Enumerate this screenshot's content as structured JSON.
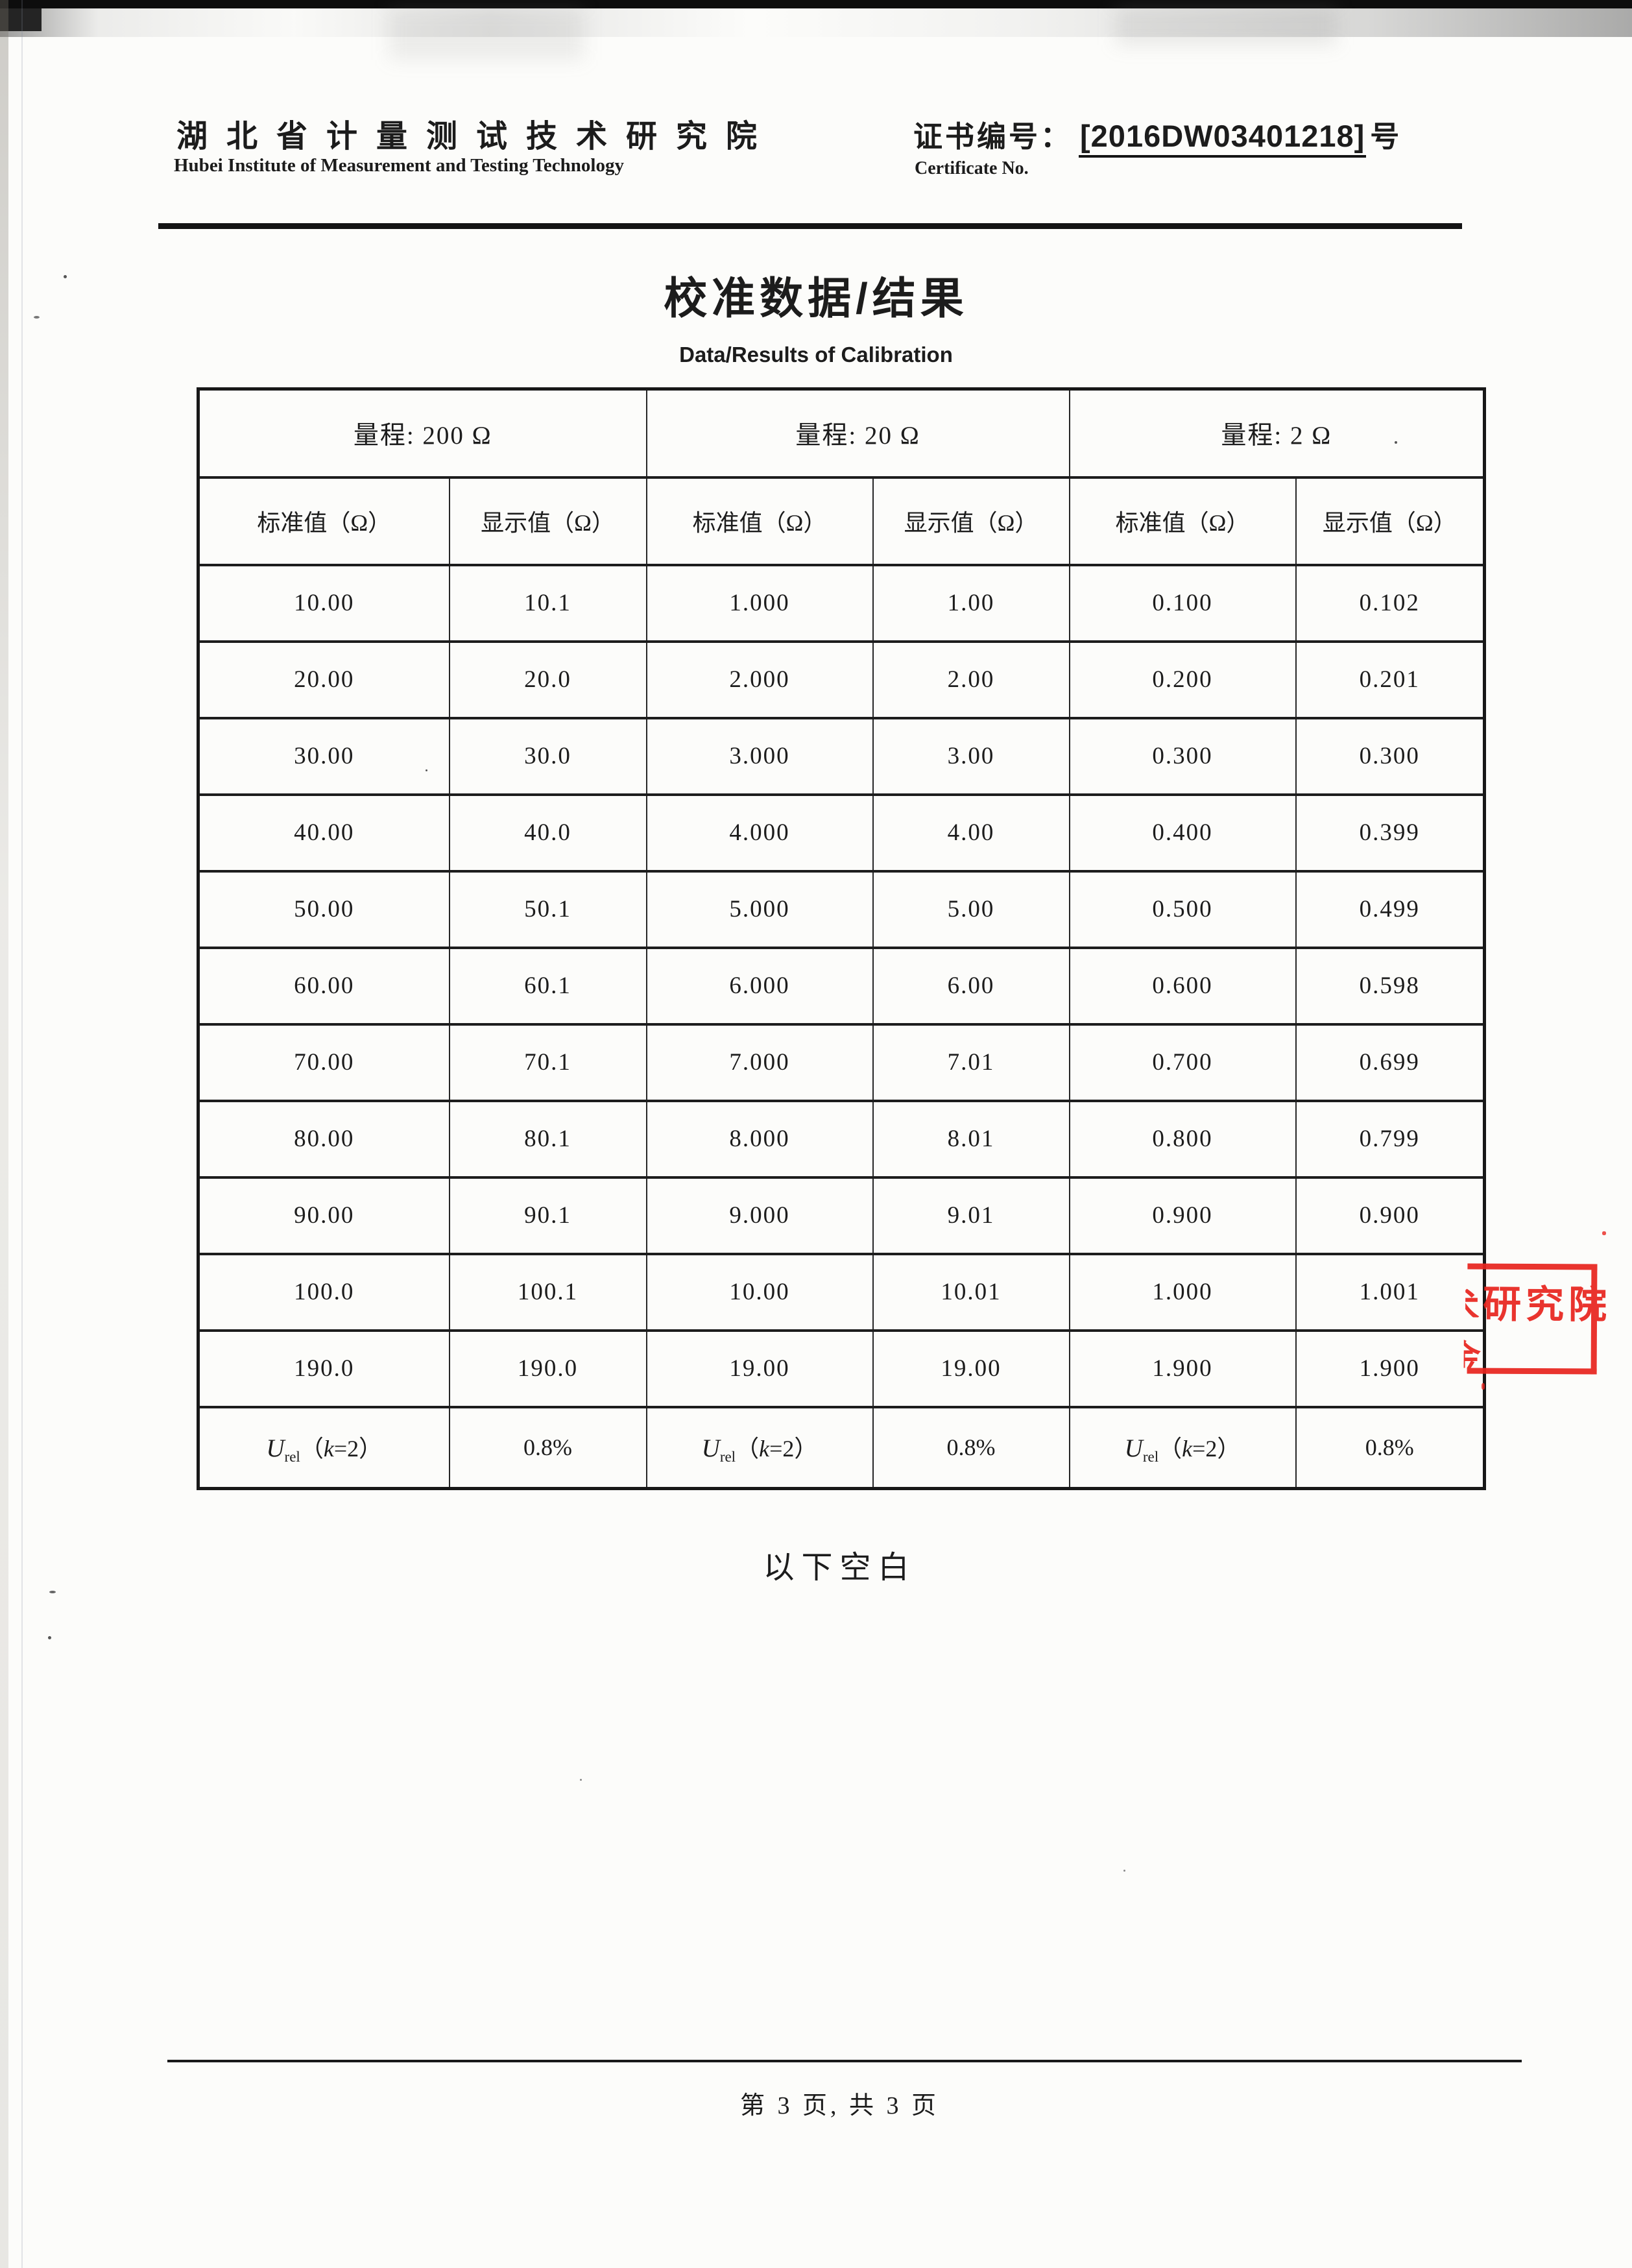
{
  "header": {
    "institute_cn": "湖北省计量测试技术研究院",
    "institute_en": "Hubei Institute of Measurement and Testing Technology",
    "cert_label_cn": "证书编号：",
    "cert_no": "[2016DW03401218]",
    "cert_suffix": "号",
    "cert_label_en": "Certificate No."
  },
  "title": {
    "cn": "校准数据/结果",
    "en": "Data/Results of Calibration"
  },
  "table": {
    "ranges": [
      "量程: 200 Ω",
      "量程: 20 Ω",
      "量程: 2 Ω"
    ],
    "col_headers": [
      "标准值（Ω）",
      "显示值（Ω）",
      "标准值（Ω）",
      "显示值（Ω）",
      "标准值（Ω）",
      "显示值（Ω）"
    ],
    "rows": [
      [
        "10.00",
        "10.1",
        "1.000",
        "1.00",
        "0.100",
        "0.102"
      ],
      [
        "20.00",
        "20.0",
        "2.000",
        "2.00",
        "0.200",
        "0.201"
      ],
      [
        "30.00",
        "30.0",
        "3.000",
        "3.00",
        "0.300",
        "0.300"
      ],
      [
        "40.00",
        "40.0",
        "4.000",
        "4.00",
        "0.400",
        "0.399"
      ],
      [
        "50.00",
        "50.1",
        "5.000",
        "5.00",
        "0.500",
        "0.499"
      ],
      [
        "60.00",
        "60.1",
        "6.000",
        "6.00",
        "0.600",
        "0.598"
      ],
      [
        "70.00",
        "70.1",
        "7.000",
        "7.01",
        "0.700",
        "0.699"
      ],
      [
        "80.00",
        "80.1",
        "8.000",
        "8.01",
        "0.800",
        "0.799"
      ],
      [
        "90.00",
        "90.1",
        "9.000",
        "9.01",
        "0.900",
        "0.900"
      ],
      [
        "100.0",
        "100.1",
        "10.00",
        "10.01",
        "1.000",
        "1.001"
      ],
      [
        "190.0",
        "190.0",
        "19.00",
        "19.00",
        "1.900",
        "1.900"
      ]
    ],
    "urel": {
      "u": "U",
      "sub": "rel",
      "open": "（",
      "k": "k",
      "close": "=2）",
      "value": "0.8%"
    }
  },
  "below_blank_text": "以下空白",
  "stamp": {
    "text": "研究院",
    "fragment_top": "术",
    "fragment_bottom": "金",
    "color": "#e8251f"
  },
  "footer": {
    "page_text": "第 3 页, 共 3 页"
  }
}
